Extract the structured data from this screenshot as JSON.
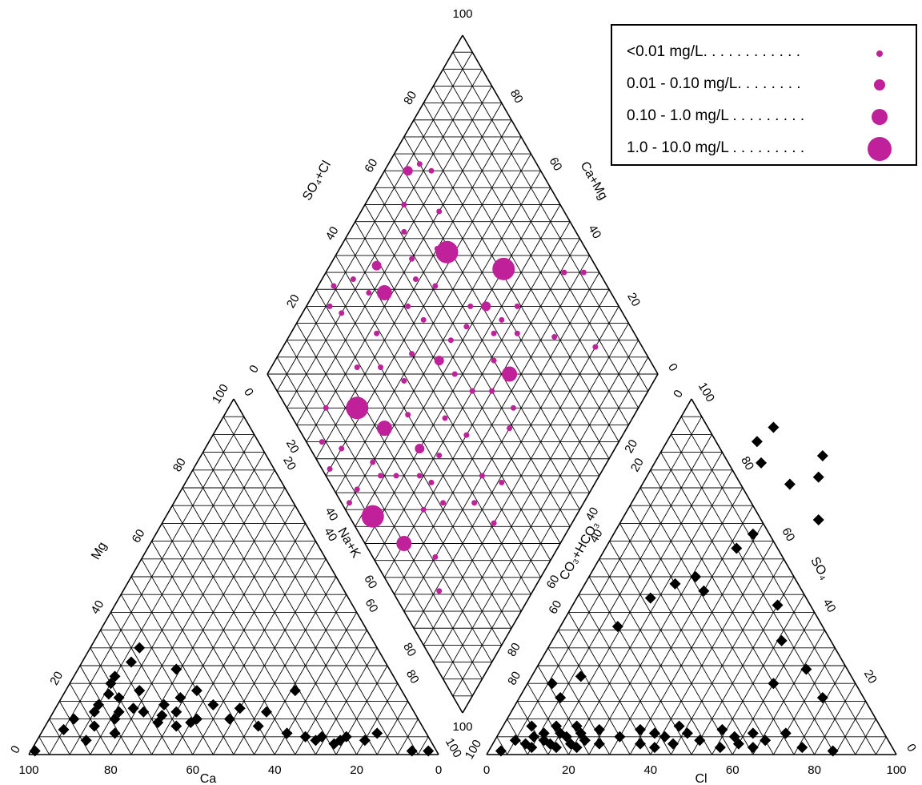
{
  "legend": {
    "items": [
      {
        "label": "<0.01 mg/L. . . . . . . . . . . .",
        "size": "small"
      },
      {
        "label": "0.01 - 0.10 mg/L. . . . . . . .",
        "size": "medium"
      },
      {
        "label": "0.10 - 1.0 mg/L . . . . . . . . .",
        "size": "large"
      },
      {
        "label": "1.0 - 10.0 mg/L . . . . . . . . .",
        "size": "xlarge"
      }
    ],
    "color": "#c0209a"
  },
  "axis_titles": {
    "ca": "Ca",
    "mg": "Mg",
    "nak": "Na+K",
    "cl": "Cl",
    "so4": "SO₄",
    "co3hco3": "CO₃+HCO₃",
    "so4cl": "SO₄+Cl",
    "camg": "Ca+Mg"
  },
  "colors": {
    "marker": "#000000",
    "grid": "#000000",
    "dot": "#c0209a"
  },
  "chart_data": {
    "type": "scatter",
    "title": "",
    "cation_triangle": {
      "axes": [
        "Ca",
        "Mg",
        "Na+K"
      ],
      "ticks": [
        0,
        20,
        40,
        60,
        80,
        100
      ],
      "points": [
        {
          "ca": 98,
          "mg": 1
        },
        {
          "ca": 88,
          "mg": 7
        },
        {
          "ca": 84,
          "mg": 10
        },
        {
          "ca": 80,
          "mg": 8
        },
        {
          "ca": 78,
          "mg": 12
        },
        {
          "ca": 76,
          "mg": 14
        },
        {
          "ca": 74,
          "mg": 10
        },
        {
          "ca": 72,
          "mg": 17
        },
        {
          "ca": 72,
          "mg": 12
        },
        {
          "ca": 70,
          "mg": 20
        },
        {
          "ca": 70,
          "mg": 16
        },
        {
          "ca": 68,
          "mg": 13
        },
        {
          "ca": 66,
          "mg": 12
        },
        {
          "ca": 64,
          "mg": 18
        },
        {
          "ca": 64,
          "mg": 9
        },
        {
          "ca": 62,
          "mg": 11
        },
        {
          "ca": 60,
          "mg": 14
        },
        {
          "ca": 60,
          "mg": 8
        },
        {
          "ca": 58,
          "mg": 12
        },
        {
          "ca": 56,
          "mg": 9
        },
        {
          "ca": 55,
          "mg": 16
        },
        {
          "ca": 54,
          "mg": 10
        },
        {
          "ca": 52,
          "mg": 24
        },
        {
          "ca": 50,
          "mg": 18
        },
        {
          "ca": 48,
          "mg": 14
        },
        {
          "ca": 46,
          "mg": 10
        },
        {
          "ca": 42,
          "mg": 13
        },
        {
          "ca": 40,
          "mg": 8
        },
        {
          "ca": 36,
          "mg": 12
        },
        {
          "ca": 34,
          "mg": 6
        },
        {
          "ca": 30,
          "mg": 5
        },
        {
          "ca": 28,
          "mg": 4
        },
        {
          "ca": 26,
          "mg": 5
        },
        {
          "ca": 24,
          "mg": 3
        },
        {
          "ca": 22,
          "mg": 4
        },
        {
          "ca": 20,
          "mg": 5
        },
        {
          "ca": 16,
          "mg": 4
        },
        {
          "ca": 12,
          "mg": 6
        },
        {
          "ca": 6,
          "mg": 1
        },
        {
          "ca": 2,
          "mg": 1
        },
        {
          "ca": 68,
          "mg": 22
        },
        {
          "ca": 62,
          "mg": 26
        },
        {
          "ca": 58,
          "mg": 30
        },
        {
          "ca": 26,
          "mg": 18
        },
        {
          "ca": 84,
          "mg": 4
        },
        {
          "ca": 76,
          "mg": 6
        }
      ]
    },
    "anion_triangle": {
      "axes": [
        "Cl",
        "SO4",
        "CO3+HCO3"
      ],
      "ticks": [
        0,
        20,
        40,
        60,
        80,
        100
      ],
      "points": [
        {
          "cl": 3,
          "so4": 1
        },
        {
          "cl": 5,
          "so4": 4
        },
        {
          "cl": 7,
          "so4": 8
        },
        {
          "cl": 8,
          "so4": 3
        },
        {
          "cl": 9,
          "so4": 5
        },
        {
          "cl": 10,
          "so4": 2
        },
        {
          "cl": 11,
          "so4": 6
        },
        {
          "cl": 12,
          "so4": 4
        },
        {
          "cl": 13,
          "so4": 8
        },
        {
          "cl": 14,
          "so4": 3
        },
        {
          "cl": 15,
          "so4": 6
        },
        {
          "cl": 16,
          "so4": 2
        },
        {
          "cl": 17,
          "so4": 5
        },
        {
          "cl": 18,
          "so4": 8
        },
        {
          "cl": 19,
          "so4": 3
        },
        {
          "cl": 20,
          "so4": 6
        },
        {
          "cl": 21,
          "so4": 2
        },
        {
          "cl": 22,
          "so4": 4
        },
        {
          "cl": 24,
          "so4": 7
        },
        {
          "cl": 26,
          "so4": 3
        },
        {
          "cl": 30,
          "so4": 5
        },
        {
          "cl": 34,
          "so4": 7
        },
        {
          "cl": 36,
          "so4": 3
        },
        {
          "cl": 38,
          "so4": 6
        },
        {
          "cl": 40,
          "so4": 2
        },
        {
          "cl": 41,
          "so4": 5
        },
        {
          "cl": 43,
          "so4": 8
        },
        {
          "cl": 44,
          "so4": 3
        },
        {
          "cl": 46,
          "so4": 6
        },
        {
          "cl": 50,
          "so4": 4
        },
        {
          "cl": 54,
          "so4": 7
        },
        {
          "cl": 56,
          "so4": 2
        },
        {
          "cl": 58,
          "so4": 5
        },
        {
          "cl": 60,
          "so4": 3
        },
        {
          "cl": 62,
          "so4": 6
        },
        {
          "cl": 64,
          "so4": 2
        },
        {
          "cl": 66,
          "so4": 4
        },
        {
          "cl": 70,
          "so4": 6
        },
        {
          "cl": 76,
          "so4": 2
        },
        {
          "cl": 84,
          "so4": 1
        },
        {
          "cl": 10,
          "so4": 16
        },
        {
          "cl": 12,
          "so4": 22
        },
        {
          "cl": 6,
          "so4": 20
        },
        {
          "cl": 14,
          "so4": 36
        },
        {
          "cl": 18,
          "so4": 44
        },
        {
          "cl": 22,
          "so4": 48
        },
        {
          "cl": 26,
          "so4": 50
        },
        {
          "cl": 30,
          "so4": 46
        },
        {
          "cl": 32,
          "so4": 58
        },
        {
          "cl": 34,
          "so4": 62
        },
        {
          "cl": 36,
          "so4": 76
        },
        {
          "cl": 40,
          "so4": 84
        },
        {
          "cl": 42,
          "so4": 78
        },
        {
          "cl": 50,
          "so4": 42
        },
        {
          "cl": 56,
          "so4": 32
        },
        {
          "cl": 60,
          "so4": 20
        },
        {
          "cl": 74,
          "so4": 16
        },
        {
          "cl": 66,
          "so4": 24
        },
        {
          "cl": 24,
          "so4": 92
        },
        {
          "cl": 22,
          "so4": 88
        },
        {
          "cl": 26,
          "so4": 82
        },
        {
          "cl": 48,
          "so4": 66
        }
      ]
    },
    "diamond": {
      "axes": [
        "SO4+Cl",
        "Ca+Mg"
      ],
      "ticks": [
        0,
        20,
        40,
        60,
        80,
        100
      ],
      "points": [
        {
          "anion": 96,
          "cation": 34,
          "size": "small"
        },
        {
          "anion": 91,
          "cation": 39,
          "size": "small"
        },
        {
          "anion": 88,
          "cation": 20,
          "size": "small"
        },
        {
          "anion": 79,
          "cation": 32,
          "size": "small"
        },
        {
          "anion": 76,
          "cation": 55,
          "size": "xlarge"
        },
        {
          "anion": 74,
          "cation": 46,
          "size": "small"
        },
        {
          "anion": 70,
          "cation": 42,
          "size": "small"
        },
        {
          "anion": 68,
          "cation": 48,
          "size": "small"
        },
        {
          "anion": 66,
          "cation": 54,
          "size": "medium"
        },
        {
          "anion": 64,
          "cation": 48,
          "size": "small"
        },
        {
          "anion": 62,
          "cation": 38,
          "size": "large"
        },
        {
          "anion": 60,
          "cation": 44,
          "size": "small"
        },
        {
          "anion": 58,
          "cation": 32,
          "size": "small"
        },
        {
          "anion": 55,
          "cation": 40,
          "size": "small"
        },
        {
          "anion": 54,
          "cation": 30,
          "size": "small"
        },
        {
          "anion": 50,
          "cation": 45,
          "size": "small"
        },
        {
          "anion": 48,
          "cation": 52,
          "size": "small"
        },
        {
          "anion": 46,
          "cation": 58,
          "size": "medium"
        },
        {
          "anion": 44,
          "cation": 24,
          "size": "small"
        },
        {
          "anion": 42,
          "cation": 40,
          "size": "small"
        },
        {
          "anion": 40,
          "cation": 30,
          "size": "small"
        },
        {
          "anion": 39,
          "cation": 48,
          "size": "small"
        },
        {
          "anion": 36,
          "cation": 20,
          "size": "small"
        },
        {
          "anion": 34,
          "cation": 28,
          "size": "small"
        },
        {
          "anion": 28,
          "cation": 50,
          "size": "medium"
        },
        {
          "anion": 26,
          "cation": 42,
          "size": "small"
        },
        {
          "anion": 24,
          "cation": 46,
          "size": "small"
        },
        {
          "anion": 20,
          "cation": 40,
          "size": "small"
        },
        {
          "anion": 18,
          "cation": 52,
          "size": "small"
        },
        {
          "anion": 14,
          "cation": 60,
          "size": "small"
        },
        {
          "anion": 22,
          "cation": 62,
          "size": "large"
        },
        {
          "anion": 30,
          "cation": 58,
          "size": "small"
        },
        {
          "anion": 34,
          "cation": 64,
          "size": "small"
        },
        {
          "anion": 40,
          "cation": 66,
          "size": "small"
        },
        {
          "anion": 48,
          "cation": 68,
          "size": "small"
        },
        {
          "anion": 56,
          "cation": 70,
          "size": "small"
        },
        {
          "anion": 62,
          "cation": 75,
          "size": "small"
        },
        {
          "anion": 64,
          "cation": 72,
          "size": "xlarge"
        },
        {
          "anion": 68,
          "cation": 80,
          "size": "small"
        },
        {
          "anion": 72,
          "cation": 88,
          "size": "small"
        },
        {
          "anion": 70,
          "cation": 92,
          "size": "small"
        },
        {
          "anion": 66,
          "cation": 94,
          "size": "medium"
        },
        {
          "anion": 60,
          "cation": 90,
          "size": "small"
        },
        {
          "anion": 56,
          "cation": 86,
          "size": "small"
        },
        {
          "anion": 54,
          "cation": 80,
          "size": "small"
        },
        {
          "anion": 52,
          "cation": 76,
          "size": "small"
        },
        {
          "anion": 46,
          "cation": 74,
          "size": "small"
        },
        {
          "anion": 38,
          "cation": 86,
          "size": "small"
        },
        {
          "anion": 28,
          "cation": 90,
          "size": "small"
        },
        {
          "anion": 30,
          "cation": 72,
          "size": "small"
        },
        {
          "anion": 24,
          "cation": 78,
          "size": "small"
        },
        {
          "anion": 18,
          "cation": 72,
          "size": "xlarge"
        },
        {
          "anion": 10,
          "cation": 80,
          "size": "small"
        },
        {
          "anion": 8,
          "cation": 70,
          "size": "small"
        },
        {
          "anion": 14,
          "cation": 56,
          "size": "small"
        },
        {
          "anion": 6,
          "cation": 52,
          "size": "xlarge"
        },
        {
          "anion": 4,
          "cation": 76,
          "size": "small"
        },
        {
          "anion": 2,
          "cation": 70,
          "size": "small"
        },
        {
          "anion": 34,
          "cation": 78,
          "size": "small"
        },
        {
          "anion": 36,
          "cation": 92,
          "size": "small"
        },
        {
          "anion": 42,
          "cation": 82,
          "size": "large"
        },
        {
          "anion": 44,
          "cation": 88,
          "size": "medium"
        },
        {
          "anion": 52,
          "cation": 58,
          "size": "small"
        },
        {
          "anion": 58,
          "cation": 56,
          "size": "small"
        },
        {
          "anion": 62,
          "cation": 58,
          "size": "small"
        },
        {
          "anion": 26,
          "cation": 36,
          "size": "small"
        },
        {
          "anion": 32,
          "cation": 44,
          "size": "small"
        },
        {
          "anion": 16,
          "cation": 30,
          "size": "small"
        },
        {
          "anion": 12,
          "cation": 24,
          "size": "small"
        },
        {
          "anion": 10,
          "cation": 40,
          "size": "large"
        },
        {
          "anion": 6,
          "cation": 60,
          "size": "small"
        },
        {
          "anion": 2,
          "cation": 60,
          "size": "small"
        },
        {
          "anion": 30,
          "cation": 96,
          "size": "small"
        },
        {
          "anion": 26,
          "cation": 94,
          "size": "small"
        }
      ]
    }
  }
}
